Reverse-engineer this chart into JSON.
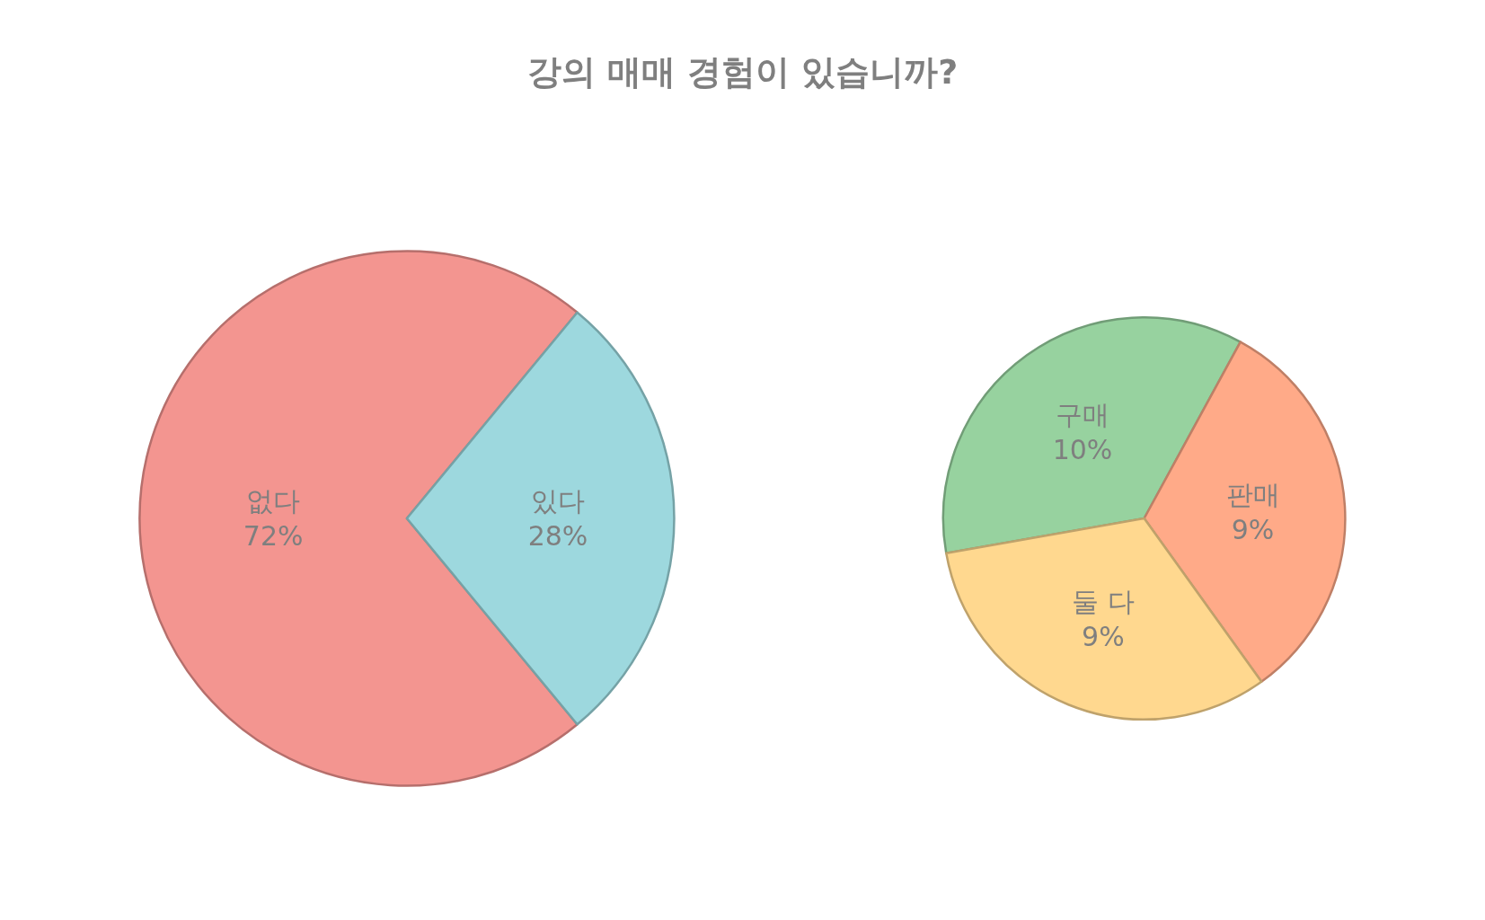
{
  "chart_data": [
    {
      "type": "pie",
      "title": "강의 매매 경험이 있습니까?",
      "categories": [
        "없다",
        "있다"
      ],
      "values": [
        72,
        28
      ],
      "value_labels": [
        "72%",
        "28%"
      ],
      "colors": [
        "#f39590",
        "#9dd8de"
      ],
      "legend": false
    },
    {
      "type": "pie",
      "categories": [
        "구매",
        "판매",
        "둘 다"
      ],
      "values": [
        10,
        9,
        9
      ],
      "value_labels": [
        "10%",
        "9%",
        "9%"
      ],
      "colors": [
        "#97d29f",
        "#ffaa88",
        "#ffd88f"
      ],
      "legend": false
    }
  ]
}
